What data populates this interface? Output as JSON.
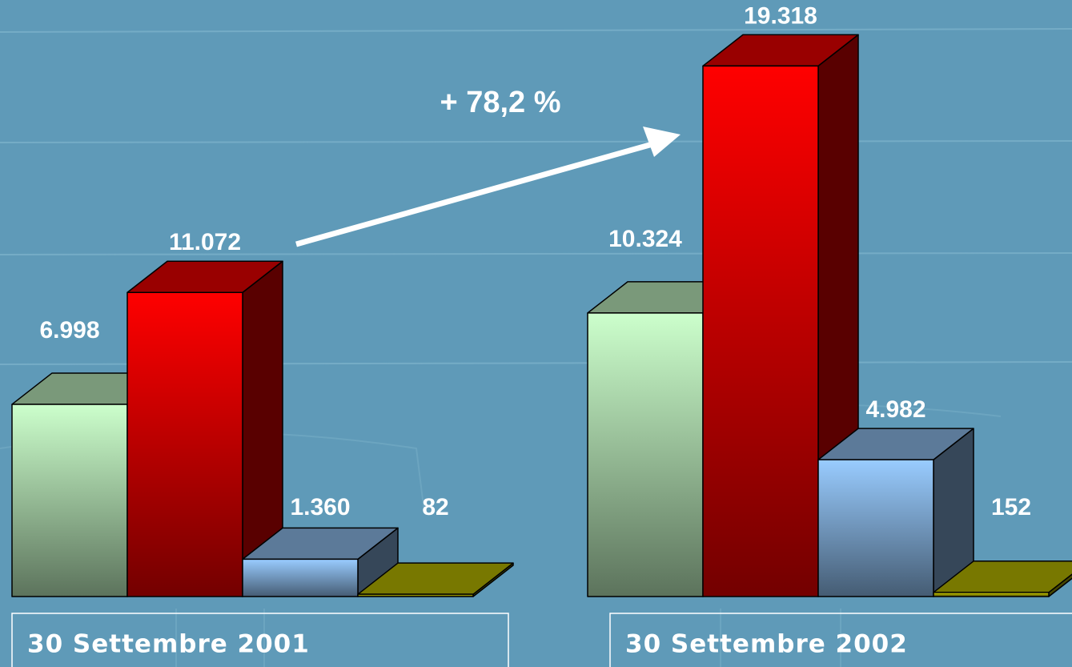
{
  "chart_data": {
    "type": "bar3d",
    "categories": [
      "30 Settembre 2001",
      "30 Settembre 2002"
    ],
    "series": [
      {
        "color": "#ccffcc",
        "values": [
          6998,
          10324
        ],
        "value_labels": [
          "6.998",
          "10.324"
        ]
      },
      {
        "color": "#ff0000",
        "values": [
          11072,
          19318
        ],
        "value_labels": [
          "11.072",
          "19.318"
        ]
      },
      {
        "color": "#99ccff",
        "values": [
          1360,
          4982
        ],
        "value_labels": [
          "1.360",
          "4.982"
        ]
      },
      {
        "color": "#c8c800",
        "values": [
          82,
          152
        ],
        "value_labels": [
          "82",
          "152"
        ]
      }
    ],
    "annotations": [
      "+ 78,2 %"
    ]
  }
}
